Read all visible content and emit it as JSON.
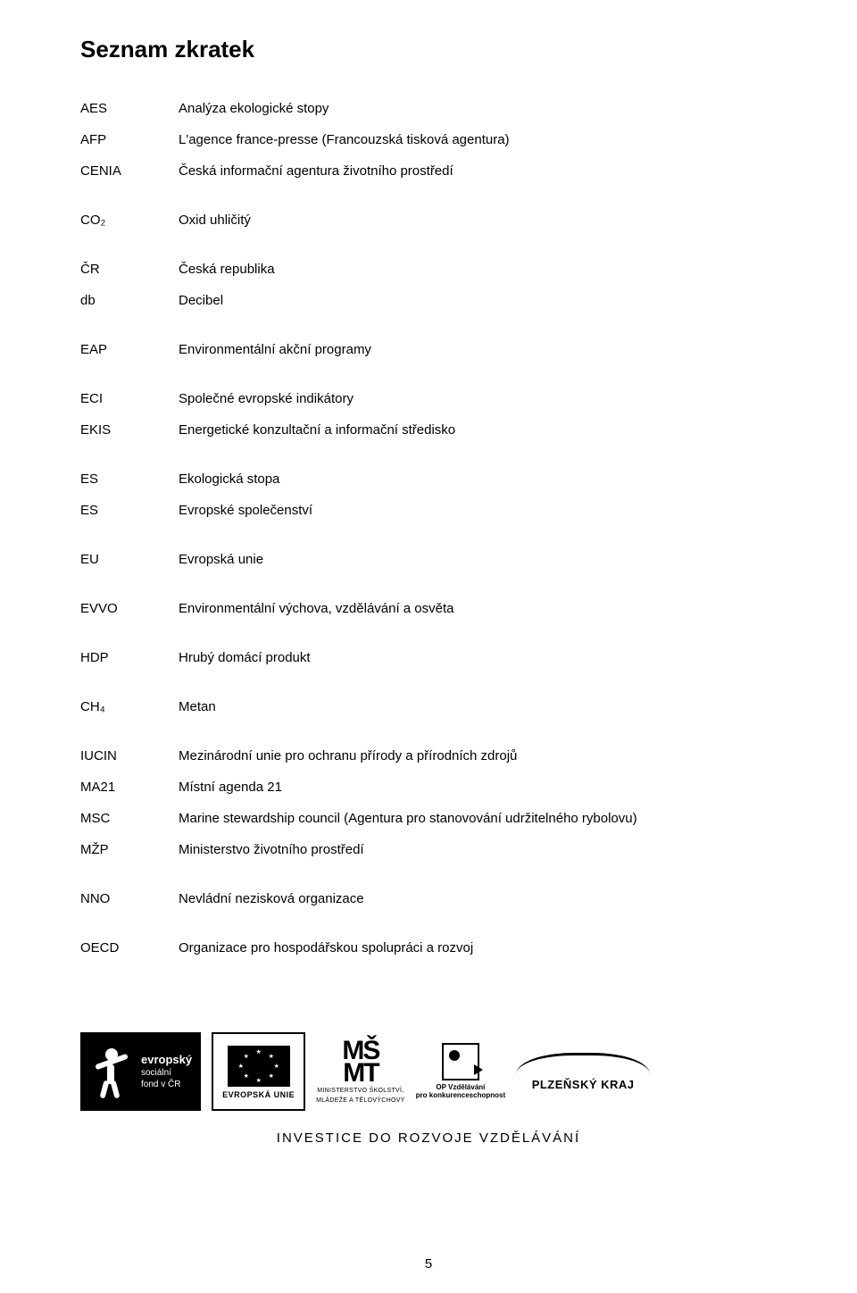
{
  "title": "Seznam zkratek",
  "abbreviations": [
    {
      "abbr": "AES",
      "def": "Analýza ekologické stopy",
      "gap": "small"
    },
    {
      "abbr": "AFP",
      "def": "L'agence france-presse (Francouzská tisková agentura)",
      "gap": "small"
    },
    {
      "abbr": "CENIA",
      "def": "Česká informační agentura životního prostředí",
      "gap": "large"
    },
    {
      "abbr": "CO₂",
      "def": "Oxid uhličitý",
      "gap": "large"
    },
    {
      "abbr": "ČR",
      "def": "Česká republika",
      "gap": "small"
    },
    {
      "abbr": "db",
      "def": "Decibel",
      "gap": "large"
    },
    {
      "abbr": "EAP",
      "def": "Environmentální akční programy",
      "gap": "large"
    },
    {
      "abbr": "ECI",
      "def": "Společné evropské indikátory",
      "gap": "small"
    },
    {
      "abbr": "EKIS",
      "def": "Energetické konzultační a informační středisko",
      "gap": "large"
    },
    {
      "abbr": "ES",
      "def": "Ekologická stopa",
      "gap": "small"
    },
    {
      "abbr": "ES",
      "def": "Evropské společenství",
      "gap": "large"
    },
    {
      "abbr": "EU",
      "def": "Evropská unie",
      "gap": "large"
    },
    {
      "abbr": "EVVO",
      "def": "Environmentální výchova, vzdělávání a osvěta",
      "gap": "large"
    },
    {
      "abbr": "HDP",
      "def": "Hrubý domácí produkt",
      "gap": "large"
    },
    {
      "abbr": "CH₄",
      "def": "Metan",
      "gap": "large"
    },
    {
      "abbr": "IUCIN",
      "def": "Mezinárodní unie pro ochranu přírody a přírodních zdrojů",
      "gap": "small"
    },
    {
      "abbr": "MA21",
      "def": "Místní agenda 21",
      "gap": "small"
    },
    {
      "abbr": "MSC",
      "def": "Marine stewardship council (Agentura pro stanovování udržitelného rybolovu)",
      "gap": "small"
    },
    {
      "abbr": "MŽP",
      "def": "Ministerstvo životního prostředí",
      "gap": "large"
    },
    {
      "abbr": "NNO",
      "def": "Nevládní nezisková organizace",
      "gap": "large"
    },
    {
      "abbr": "OECD",
      "def": "Organizace pro hospodářskou spolupráci a rozvoj",
      "gap": "large"
    }
  ],
  "logos": {
    "esf": {
      "line1_bold": "evropský",
      "line2": "sociální",
      "line3": "fond v ČR"
    },
    "eu": {
      "caption": "EVROPSKÁ UNIE"
    },
    "msmt": {
      "top": "MŠ",
      "bottom": "MT",
      "caption1": "MINISTERSTVO ŠKOLSTVÍ,",
      "caption2": "MLÁDEŽE A TĚLOVÝCHOVY"
    },
    "op": {
      "caption1": "OP Vzdělávání",
      "caption2": "pro konkurenceschopnost"
    },
    "plzen": {
      "caption": "PLZEŇSKÝ KRAJ"
    }
  },
  "invest_line": "INVESTICE DO ROZVOJE VZDĚLÁVÁNÍ",
  "page_number": "5"
}
